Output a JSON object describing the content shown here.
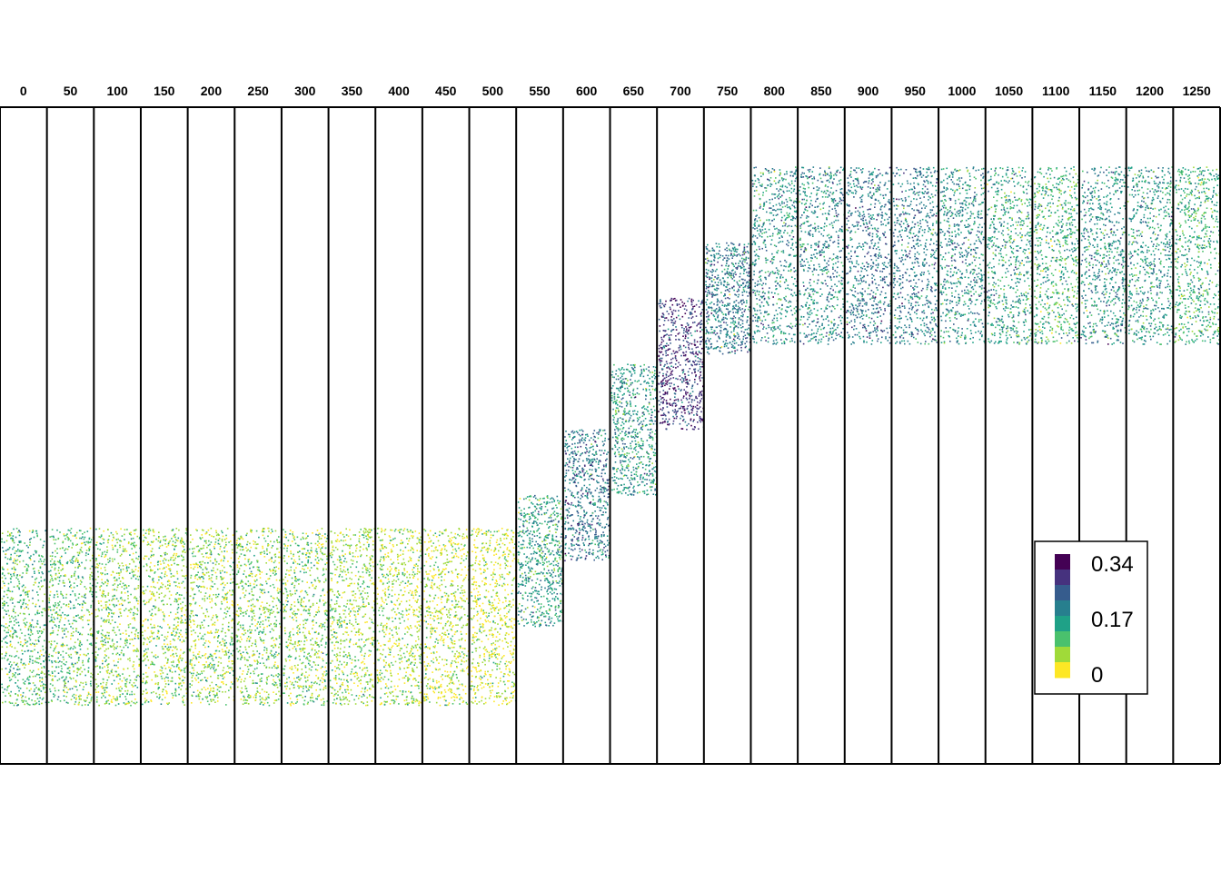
{
  "chart_data": {
    "type": "scatter",
    "title": "",
    "xlabel": "",
    "ylabel": "",
    "panel_labels": [
      "0",
      "50",
      "100",
      "150",
      "200",
      "250",
      "300",
      "350",
      "400",
      "450",
      "500",
      "550",
      "600",
      "650",
      "700",
      "750",
      "800",
      "850",
      "900",
      "950",
      "1000",
      "1050",
      "1100",
      "1150",
      "1200",
      "1250"
    ],
    "band_center": [
      -0.05,
      -0.05,
      -0.05,
      -0.05,
      -0.05,
      -0.05,
      -0.05,
      -0.05,
      -0.05,
      -0.05,
      -0.05,
      0.12,
      0.32,
      0.52,
      0.72,
      0.92,
      1.05,
      1.05,
      1.05,
      1.05,
      1.05,
      1.05,
      1.05,
      1.05,
      1.05,
      1.05
    ],
    "band_halfwidth": [
      0.27,
      0.27,
      0.27,
      0.27,
      0.27,
      0.27,
      0.27,
      0.27,
      0.27,
      0.27,
      0.27,
      0.2,
      0.2,
      0.2,
      0.2,
      0.17,
      0.27,
      0.27,
      0.27,
      0.27,
      0.27,
      0.27,
      0.27,
      0.27,
      0.27,
      0.27
    ],
    "panel_mean_value": [
      0.11,
      0.1,
      0.08,
      0.07,
      0.07,
      0.08,
      0.08,
      0.07,
      0.06,
      0.05,
      0.04,
      0.15,
      0.2,
      0.16,
      0.27,
      0.2,
      0.17,
      0.18,
      0.2,
      0.19,
      0.17,
      0.15,
      0.13,
      0.17,
      0.16,
      0.13
    ],
    "ylim": [
      -0.5,
      1.5
    ],
    "color_scale": {
      "min": 0,
      "max": 0.34,
      "colors": [
        "#FDE725",
        "#A0DA39",
        "#4AC16D",
        "#1FA187",
        "#277F8E",
        "#365C8D",
        "#46327E",
        "#440154"
      ]
    },
    "legend": {
      "position": "bottom-right",
      "labels": [
        "0.34",
        "0.17",
        "0"
      ]
    },
    "grid": false
  }
}
